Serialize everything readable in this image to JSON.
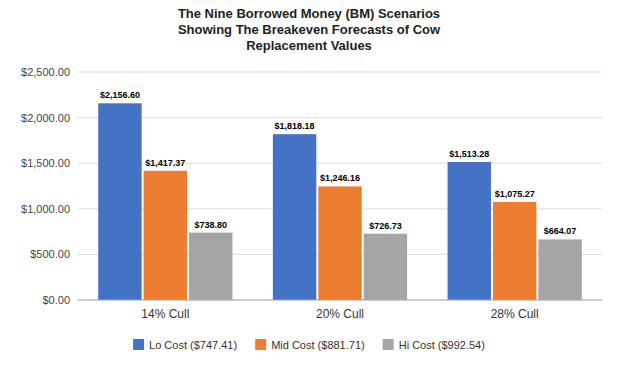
{
  "chart_data": {
    "type": "bar",
    "title": "The Nine Borrowed Money (BM) Scenarios\nShowing The Breakeven Forecasts of Cow\nReplacement Values",
    "categories": [
      "14% Cull",
      "20% Cull",
      "28% Cull"
    ],
    "series": [
      {
        "name": "Lo Cost ($747.41)",
        "color": "#4472C4",
        "values": [
          2156.6,
          1818.18,
          1513.28
        ],
        "value_labels": [
          "$2,156.60",
          "$1,818.18",
          "$1,513.28"
        ]
      },
      {
        "name": "Mid Cost ($881.71)",
        "color": "#ED7D31",
        "values": [
          1417.37,
          1246.16,
          1075.27
        ],
        "value_labels": [
          "$1,417.37",
          "$1,246.16",
          "$1,075.27"
        ]
      },
      {
        "name": "Hi Cost ($992.54)",
        "color": "#A5A5A5",
        "values": [
          738.8,
          726.73,
          664.07
        ],
        "value_labels": [
          "$738.80",
          "$726.73",
          "$664.07"
        ]
      }
    ],
    "ylim": [
      0,
      2500
    ],
    "yticks": [
      {
        "value": 0,
        "label": "$0.00"
      },
      {
        "value": 500,
        "label": "$500.00"
      },
      {
        "value": 1000,
        "label": "$1,000.00"
      },
      {
        "value": 1500,
        "label": "$1,500.00"
      },
      {
        "value": 2000,
        "label": "$2,000.00"
      },
      {
        "value": 2500,
        "label": "$2,500.00"
      }
    ],
    "grid": true,
    "data_labels": true,
    "legend": "bottom"
  }
}
